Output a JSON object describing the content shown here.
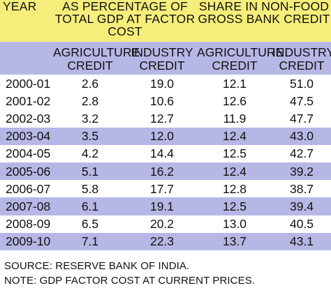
{
  "header": {
    "year_label": "YEAR",
    "group1_title": "AS PERCENTAGE OF TOTAL GDP AT FACTOR COST",
    "group2_title": "SHARE IN NON-FOOD GROSS BANK CREDIT"
  },
  "subheader": {
    "col1": "AGRICULTURE CREDIT",
    "col2": "INDUSTRY CREDIT",
    "col3": "AGRICULTURE CREDIT",
    "col4": "INDUSTRY CREDIT"
  },
  "rows": [
    {
      "year": "2000-01",
      "gdp_agri": "2.6",
      "gdp_ind": "19.0",
      "share_agri": "12.1",
      "share_ind": "51.0"
    },
    {
      "year": "2001-02",
      "gdp_agri": "2.8",
      "gdp_ind": "10.6",
      "share_agri": "12.6",
      "share_ind": "47.5"
    },
    {
      "year": "2002-03",
      "gdp_agri": "3.2",
      "gdp_ind": "12.7",
      "share_agri": "11.9",
      "share_ind": "47.7"
    },
    {
      "year": "2003-04",
      "gdp_agri": "3.5",
      "gdp_ind": "12.0",
      "share_agri": "12.4",
      "share_ind": "43.0"
    },
    {
      "year": "2004-05",
      "gdp_agri": "4.2",
      "gdp_ind": "14.4",
      "share_agri": "12.5",
      "share_ind": "42.7"
    },
    {
      "year": "2005-06",
      "gdp_agri": "5.1",
      "gdp_ind": "16.2",
      "share_agri": "12.4",
      "share_ind": "39.2"
    },
    {
      "year": "2006-07",
      "gdp_agri": "5.8",
      "gdp_ind": "17.7",
      "share_agri": "12.8",
      "share_ind": "38.7"
    },
    {
      "year": "2007-08",
      "gdp_agri": "6.1",
      "gdp_ind": "19.1",
      "share_agri": "12.5",
      "share_ind": "39.4"
    },
    {
      "year": "2008-09",
      "gdp_agri": "6.5",
      "gdp_ind": "20.2",
      "share_agri": "13.0",
      "share_ind": "40.5"
    },
    {
      "year": "2009-10",
      "gdp_agri": "7.1",
      "gdp_ind": "22.3",
      "share_agri": "13.7",
      "share_ind": "43.1"
    }
  ],
  "notes": {
    "source": "SOURCE: RESERVE BANK OF INDIA.",
    "note": "NOTE: GDP FACTOR COST AT CURRENT PRICES."
  },
  "colors": {
    "header_band": "#f6ee7a",
    "stripe": "#b7b7e6"
  }
}
